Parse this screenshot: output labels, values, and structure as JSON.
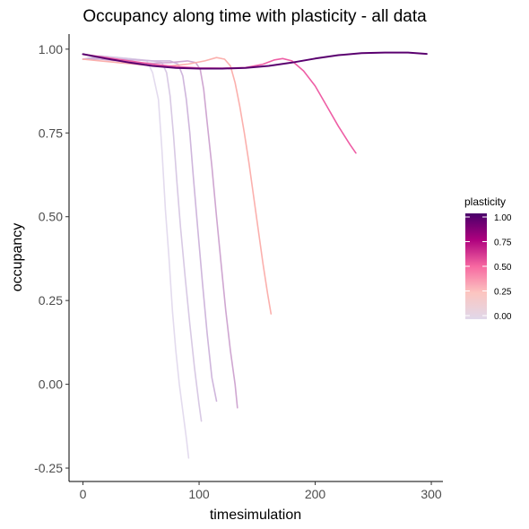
{
  "chart_data": {
    "type": "line",
    "title": "Occupancy along time with plasticity - all data",
    "xlabel": "timesimulation",
    "ylabel": "occupancy",
    "xlim": [
      -12,
      310
    ],
    "ylim": [
      -0.29,
      1.045
    ],
    "xticks": [
      0,
      100,
      200,
      300
    ],
    "xtick_labels": [
      "0",
      "100",
      "200",
      "300"
    ],
    "yticks": [
      -0.25,
      0,
      0.25,
      0.5,
      0.75,
      1.0
    ],
    "ytick_labels": [
      "-0.25",
      "0.00",
      "0.25",
      "0.50",
      "0.75",
      "1.00"
    ],
    "grid": false,
    "legend": {
      "title": "plasticity",
      "position": "right",
      "labels": [
        "1.00",
        "0.75",
        "0.50",
        "0.25",
        "0.00"
      ],
      "values": [
        1.0,
        0.75,
        0.5,
        0.25,
        0.0
      ],
      "gradient": [
        {
          "stop": 0.0,
          "color": "#49006a"
        },
        {
          "stop": 0.25,
          "color": "#ae017e"
        },
        {
          "stop": 0.5,
          "color": "#f768a1"
        },
        {
          "stop": 0.75,
          "color": "#fcc5c0"
        },
        {
          "stop": 1.0,
          "color": "#e0d8ea"
        }
      ]
    },
    "series": [
      {
        "name": "plasticity 0.00",
        "color": "#e3dbee",
        "x": [
          0,
          15,
          30,
          45,
          55,
          60,
          65,
          68,
          71,
          74,
          77,
          80,
          83,
          86,
          89,
          91
        ],
        "y": [
          0.97,
          0.98,
          0.975,
          0.97,
          0.965,
          0.93,
          0.85,
          0.7,
          0.52,
          0.38,
          0.22,
          0.1,
          0.0,
          -0.08,
          -0.16,
          -0.22
        ]
      },
      {
        "name": "plasticity 0.05",
        "color": "#d8c9e4",
        "x": [
          0,
          15,
          30,
          45,
          60,
          68,
          72,
          75,
          78,
          81,
          84,
          88,
          92,
          96,
          100,
          102
        ],
        "y": [
          0.97,
          0.98,
          0.975,
          0.97,
          0.965,
          0.96,
          0.93,
          0.86,
          0.74,
          0.6,
          0.47,
          0.32,
          0.18,
          0.05,
          -0.06,
          -0.11
        ]
      },
      {
        "name": "plasticity 0.10",
        "color": "#cfb6dc",
        "x": [
          0,
          15,
          30,
          45,
          60,
          75,
          82,
          86,
          89,
          92,
          95,
          99,
          103,
          107,
          111,
          115
        ],
        "y": [
          0.97,
          0.975,
          0.97,
          0.968,
          0.965,
          0.965,
          0.955,
          0.92,
          0.85,
          0.75,
          0.62,
          0.46,
          0.3,
          0.15,
          0.02,
          -0.05
        ]
      },
      {
        "name": "plasticity 0.15",
        "color": "#cfa6d1",
        "x": [
          0,
          15,
          30,
          45,
          60,
          75,
          90,
          97,
          101,
          104,
          107,
          111,
          115,
          119,
          123,
          127,
          131,
          133
        ],
        "y": [
          0.97,
          0.97,
          0.965,
          0.96,
          0.958,
          0.96,
          0.965,
          0.96,
          0.94,
          0.88,
          0.78,
          0.65,
          0.5,
          0.36,
          0.22,
          0.1,
          0.0,
          -0.07
        ]
      },
      {
        "name": "plasticity 0.30",
        "color": "#fbb0ad",
        "x": [
          0,
          15,
          30,
          45,
          60,
          75,
          90,
          105,
          115,
          122,
          127,
          131,
          135,
          139,
          143,
          147,
          151,
          155,
          159,
          162
        ],
        "y": [
          0.97,
          0.965,
          0.96,
          0.955,
          0.95,
          0.95,
          0.955,
          0.965,
          0.975,
          0.97,
          0.95,
          0.9,
          0.83,
          0.75,
          0.66,
          0.56,
          0.46,
          0.36,
          0.27,
          0.21
        ]
      },
      {
        "name": "plasticity 0.55",
        "color": "#ee5ea5",
        "x": [
          0,
          20,
          40,
          60,
          80,
          100,
          120,
          140,
          155,
          165,
          172,
          180,
          190,
          200,
          210,
          220,
          230,
          235
        ],
        "y": [
          0.985,
          0.975,
          0.965,
          0.955,
          0.948,
          0.944,
          0.943,
          0.945,
          0.955,
          0.968,
          0.972,
          0.965,
          0.935,
          0.89,
          0.83,
          0.77,
          0.715,
          0.69
        ]
      },
      {
        "name": "plasticity 1.00",
        "color": "#5a006f",
        "x": [
          0,
          20,
          40,
          60,
          80,
          100,
          120,
          140,
          160,
          180,
          200,
          220,
          240,
          260,
          280,
          296
        ],
        "y": [
          0.985,
          0.972,
          0.96,
          0.95,
          0.944,
          0.942,
          0.942,
          0.944,
          0.95,
          0.96,
          0.972,
          0.982,
          0.988,
          0.99,
          0.99,
          0.986
        ]
      }
    ]
  }
}
